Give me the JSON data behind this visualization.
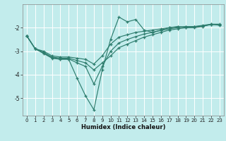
{
  "title": "",
  "xlabel": "Humidex (Indice chaleur)",
  "bg_color": "#c2ecec",
  "grid_color": "#ffffff",
  "line_color": "#2e7d6e",
  "xlim": [
    -0.5,
    23.5
  ],
  "ylim": [
    -5.75,
    -1.0
  ],
  "yticks": [
    -5,
    -4,
    -3,
    -2
  ],
  "xticks": [
    0,
    1,
    2,
    3,
    4,
    5,
    6,
    7,
    8,
    9,
    10,
    11,
    12,
    13,
    14,
    15,
    16,
    17,
    18,
    19,
    20,
    21,
    22,
    23
  ],
  "series": [
    {
      "x": [
        0,
        1,
        2,
        3,
        4,
        5,
        6,
        7,
        8,
        9,
        10,
        11,
        12,
        13,
        14,
        15,
        16,
        17,
        18,
        19,
        20,
        21,
        22,
        23
      ],
      "y": [
        -2.35,
        -2.9,
        -3.1,
        -3.3,
        -3.35,
        -3.35,
        -4.15,
        -4.9,
        -5.5,
        -3.8,
        -2.5,
        -1.55,
        -1.75,
        -1.65,
        -2.1,
        -2.2,
        -2.1,
        -2.0,
        -1.95,
        -2.0,
        -2.0,
        -1.95,
        -1.85,
        -1.9
      ]
    },
    {
      "x": [
        0,
        1,
        2,
        3,
        4,
        5,
        6,
        7,
        8,
        9,
        10,
        11,
        12,
        13,
        14,
        15,
        16,
        17,
        18,
        19,
        20,
        21,
        22,
        23
      ],
      "y": [
        -2.35,
        -2.9,
        -3.0,
        -3.2,
        -3.25,
        -3.25,
        -3.3,
        -3.35,
        -3.55,
        -3.2,
        -2.7,
        -2.4,
        -2.3,
        -2.2,
        -2.15,
        -2.1,
        -2.05,
        -2.0,
        -1.97,
        -1.95,
        -1.95,
        -1.9,
        -1.85,
        -1.85
      ]
    },
    {
      "x": [
        0,
        1,
        2,
        3,
        4,
        5,
        6,
        7,
        8,
        9,
        10,
        11,
        12,
        13,
        14,
        15,
        16,
        17,
        18,
        19,
        20,
        21,
        22,
        23
      ],
      "y": [
        -2.35,
        -2.9,
        -3.05,
        -3.25,
        -3.3,
        -3.3,
        -3.4,
        -3.5,
        -3.8,
        -3.5,
        -3.2,
        -2.85,
        -2.7,
        -2.55,
        -2.4,
        -2.3,
        -2.2,
        -2.1,
        -2.05,
        -2.0,
        -1.97,
        -1.93,
        -1.87,
        -1.87
      ]
    },
    {
      "x": [
        0,
        1,
        2,
        3,
        4,
        5,
        6,
        7,
        8,
        9,
        10,
        11,
        12,
        13,
        14,
        15,
        16,
        17,
        18,
        19,
        20,
        21,
        22,
        23
      ],
      "y": [
        -2.35,
        -2.9,
        -3.08,
        -3.28,
        -3.33,
        -3.33,
        -3.5,
        -3.65,
        -4.4,
        -3.65,
        -3.0,
        -2.65,
        -2.5,
        -2.38,
        -2.27,
        -2.2,
        -2.12,
        -2.05,
        -2.0,
        -1.97,
        -1.96,
        -1.92,
        -1.86,
        -1.86
      ]
    }
  ]
}
